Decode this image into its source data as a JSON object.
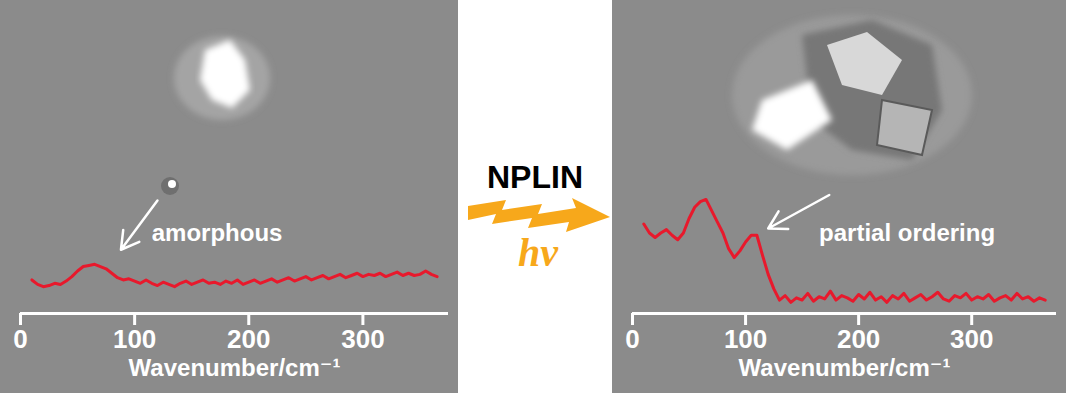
{
  "chart_data": [
    {
      "type": "line",
      "xlabel": "Wavenumber/cm⁻¹",
      "x": [
        10,
        15,
        20,
        25,
        30,
        35,
        40,
        45,
        50,
        55,
        60,
        65,
        70,
        75,
        80,
        85,
        90,
        95,
        100,
        105,
        110,
        115,
        120,
        125,
        130,
        135,
        140,
        145,
        150,
        155,
        160,
        165,
        170,
        175,
        180,
        185,
        190,
        195,
        200,
        205,
        210,
        215,
        220,
        225,
        230,
        235,
        240,
        245,
        250,
        255,
        260,
        265,
        270,
        275,
        280,
        285,
        290,
        295,
        300,
        305,
        310,
        315,
        320,
        325,
        330,
        335,
        340,
        345,
        350,
        355,
        360,
        365
      ],
      "series": [
        {
          "name": "amorphous",
          "color": "#e8192c",
          "values": [
            30,
            26,
            24,
            25,
            27,
            26,
            29,
            33,
            38,
            42,
            43,
            44,
            42,
            40,
            36,
            32,
            30,
            31,
            29,
            27,
            30,
            27,
            25,
            28,
            26,
            24,
            27,
            29,
            26,
            28,
            30,
            27,
            28,
            26,
            29,
            27,
            30,
            26,
            28,
            30,
            27,
            29,
            31,
            28,
            30,
            32,
            29,
            31,
            33,
            30,
            32,
            34,
            31,
            33,
            35,
            32,
            34,
            36,
            33,
            35,
            34,
            36,
            33,
            35,
            37,
            34,
            36,
            34,
            35,
            38,
            35,
            33
          ]
        }
      ],
      "xlim": [
        0,
        375
      ],
      "xticks": [
        0,
        100,
        200,
        300
      ],
      "ylim": [
        0,
        110
      ],
      "tick_labels": "x",
      "annotations": [
        {
          "text": "amorphous",
          "x": 115,
          "y": 72,
          "arrow_from": [
            120,
            101
          ],
          "arrow_to": [
            88,
            57
          ]
        }
      ]
    },
    {
      "type": "line",
      "xlabel": "Wavenumber/cm⁻¹",
      "x": [
        10,
        15,
        20,
        25,
        30,
        35,
        40,
        45,
        50,
        55,
        60,
        65,
        70,
        75,
        80,
        85,
        90,
        95,
        100,
        105,
        110,
        115,
        120,
        125,
        130,
        135,
        140,
        145,
        150,
        155,
        160,
        165,
        170,
        175,
        180,
        185,
        190,
        195,
        200,
        205,
        210,
        215,
        220,
        225,
        230,
        235,
        240,
        245,
        250,
        255,
        260,
        265,
        270,
        275,
        280,
        285,
        290,
        295,
        300,
        305,
        310,
        315,
        320,
        325,
        330,
        335,
        340,
        345,
        350,
        355,
        360,
        365
      ],
      "series": [
        {
          "name": "partial ordering",
          "color": "#e8192c",
          "values": [
            80,
            72,
            68,
            72,
            75,
            70,
            66,
            72,
            85,
            95,
            100,
            102,
            92,
            82,
            72,
            58,
            50,
            56,
            64,
            70,
            70,
            52,
            35,
            22,
            12,
            16,
            10,
            14,
            12,
            18,
            11,
            15,
            13,
            20,
            12,
            16,
            14,
            11,
            17,
            13,
            19,
            12,
            15,
            10,
            16,
            13,
            18,
            11,
            14,
            17,
            12,
            15,
            19,
            13,
            11,
            16,
            14,
            18,
            12,
            15,
            13,
            17,
            11,
            14,
            16,
            12,
            18,
            13,
            15,
            11,
            14,
            12
          ]
        }
      ],
      "xlim": [
        0,
        375
      ],
      "xticks": [
        0,
        100,
        200,
        300
      ],
      "ylim": [
        0,
        110
      ],
      "tick_labels": "x",
      "annotations": [
        {
          "text": "partial ordering",
          "x": 165,
          "y": 72,
          "arrow_from": [
            174,
            106
          ],
          "arrow_to": [
            120,
            76
          ]
        }
      ]
    }
  ],
  "arrow_label": {
    "text": "NPLIN",
    "symbol": "hv"
  }
}
